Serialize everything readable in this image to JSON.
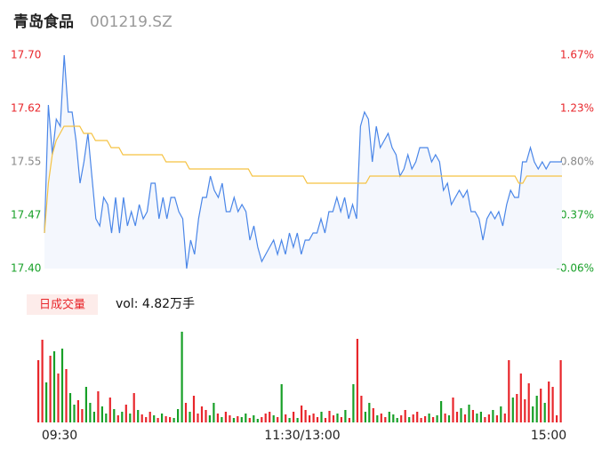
{
  "header": {
    "name": "青岛食品",
    "code": "001219.SZ"
  },
  "chart_data": [
    {
      "type": "line",
      "series": [
        {
          "color": "#4a86e8",
          "values": [
            17.45,
            17.63,
            17.56,
            17.61,
            17.6,
            17.7,
            17.62,
            17.62,
            17.58,
            17.52,
            17.55,
            17.59,
            17.53,
            17.47,
            17.46,
            17.5,
            17.49,
            17.45,
            17.5,
            17.45,
            17.5,
            17.46,
            17.48,
            17.46,
            17.49,
            17.47,
            17.48,
            17.52,
            17.52,
            17.47,
            17.5,
            17.47,
            17.5,
            17.5,
            17.48,
            17.47,
            17.4,
            17.44,
            17.42,
            17.47,
            17.5,
            17.5,
            17.53,
            17.51,
            17.5,
            17.52,
            17.48,
            17.48,
            17.5,
            17.48,
            17.49,
            17.48,
            17.44,
            17.46,
            17.43,
            17.41,
            17.42,
            17.43,
            17.44,
            17.42,
            17.44,
            17.42,
            17.45,
            17.43,
            17.45,
            17.42,
            17.44,
            17.44,
            17.45,
            17.45,
            17.47,
            17.45,
            17.48,
            17.48,
            17.5,
            17.48,
            17.5,
            17.47,
            17.49,
            17.47,
            17.6,
            17.62,
            17.61,
            17.55,
            17.6,
            17.57,
            17.58,
            17.59,
            17.57,
            17.56,
            17.53,
            17.54,
            17.56,
            17.54,
            17.55,
            17.57,
            17.57,
            17.57,
            17.55,
            17.56,
            17.55,
            17.51,
            17.52,
            17.49,
            17.5,
            17.51,
            17.5,
            17.51,
            17.48,
            17.48,
            17.47,
            17.44,
            17.47,
            17.48,
            17.47,
            17.48,
            17.46,
            17.49,
            17.51,
            17.5,
            17.5,
            17.55,
            17.55,
            17.57,
            17.55,
            17.54,
            17.55,
            17.54,
            17.55,
            17.55,
            17.55,
            17.55
          ]
        },
        {
          "color": "#f5c242",
          "values": [
            17.45,
            17.52,
            17.56,
            17.58,
            17.59,
            17.6,
            17.6,
            17.6,
            17.6,
            17.6,
            17.59,
            17.59,
            17.59,
            17.58,
            17.58,
            17.58,
            17.58,
            17.57,
            17.57,
            17.57,
            17.56,
            17.56,
            17.56,
            17.56,
            17.56,
            17.56,
            17.56,
            17.56,
            17.56,
            17.56,
            17.56,
            17.55,
            17.55,
            17.55,
            17.55,
            17.55,
            17.55,
            17.54,
            17.54,
            17.54,
            17.54,
            17.54,
            17.54,
            17.54,
            17.54,
            17.54,
            17.54,
            17.54,
            17.54,
            17.54,
            17.54,
            17.54,
            17.54,
            17.53,
            17.53,
            17.53,
            17.53,
            17.53,
            17.53,
            17.53,
            17.53,
            17.53,
            17.53,
            17.53,
            17.53,
            17.53,
            17.53,
            17.52,
            17.52,
            17.52,
            17.52,
            17.52,
            17.52,
            17.52,
            17.52,
            17.52,
            17.52,
            17.52,
            17.52,
            17.52,
            17.52,
            17.52,
            17.52,
            17.53,
            17.53,
            17.53,
            17.53,
            17.53,
            17.53,
            17.53,
            17.53,
            17.53,
            17.53,
            17.53,
            17.53,
            17.53,
            17.53,
            17.53,
            17.53,
            17.53,
            17.53,
            17.53,
            17.53,
            17.53,
            17.53,
            17.53,
            17.53,
            17.53,
            17.53,
            17.53,
            17.53,
            17.53,
            17.53,
            17.53,
            17.53,
            17.53,
            17.53,
            17.53,
            17.53,
            17.53,
            17.53,
            17.52,
            17.52,
            17.53,
            17.53,
            17.53,
            17.53,
            17.53,
            17.53,
            17.53,
            17.53,
            17.53,
            17.53
          ]
        }
      ],
      "ylim": [
        17.4,
        17.7
      ],
      "yticks": [
        {
          "value": 17.4,
          "label": "17.40"
        },
        {
          "value": 17.475,
          "label": "17.47"
        },
        {
          "value": 17.55,
          "label": "17.55"
        },
        {
          "value": 17.625,
          "label": "17.62"
        },
        {
          "value": 17.7,
          "label": "17.70"
        }
      ],
      "y2lim": [
        -0.06,
        1.67
      ],
      "y2ticks": [
        {
          "value": -0.06,
          "label": "-0.06%"
        },
        {
          "value": 0.3725,
          "label": "0.37%"
        },
        {
          "value": 0.805,
          "label": "0.80%"
        },
        {
          "value": 1.2375,
          "label": "1.23%"
        },
        {
          "value": 1.67,
          "label": "1.67%"
        }
      ]
    },
    {
      "type": "bar",
      "title": "日成交量",
      "subtitle": "vol: 4.82万手",
      "x_labels": [
        "09:30",
        "11:30/13:00",
        "15:00"
      ],
      "values": [
        70,
        93,
        45,
        75,
        80,
        55,
        83,
        60,
        33,
        20,
        25,
        15,
        40,
        22,
        12,
        35,
        18,
        10,
        28,
        15,
        8,
        12,
        20,
        10,
        33,
        14,
        9,
        6,
        12,
        8,
        5,
        10,
        7,
        6,
        5,
        15,
        102,
        22,
        12,
        30,
        10,
        18,
        14,
        8,
        22,
        10,
        6,
        12,
        8,
        5,
        7,
        6,
        10,
        5,
        8,
        4,
        6,
        10,
        12,
        8,
        6,
        43,
        9,
        5,
        12,
        5,
        19,
        14,
        8,
        10,
        6,
        12,
        5,
        13,
        8,
        10,
        6,
        14,
        5,
        43,
        94,
        30,
        12,
        22,
        16,
        8,
        10,
        6,
        12,
        9,
        5,
        8,
        14,
        6,
        9,
        12,
        5,
        7,
        10,
        6,
        8,
        24,
        10,
        8,
        28,
        12,
        16,
        9,
        20,
        14,
        10,
        12,
        6,
        9,
        14,
        8,
        18,
        10,
        70,
        28,
        32,
        55,
        26,
        44,
        18,
        30,
        38,
        22,
        46,
        40,
        8,
        70
      ],
      "up_color": "#e8262b",
      "down_color": "#18a028"
    }
  ]
}
